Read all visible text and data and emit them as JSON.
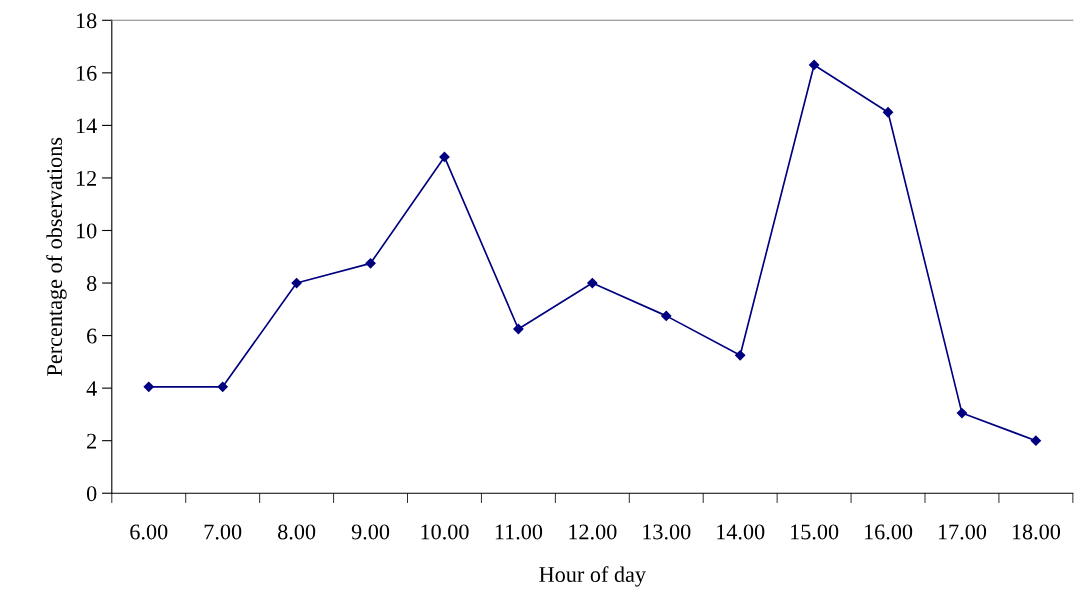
{
  "chart_data": {
    "type": "line",
    "xlabel": "Hour of day",
    "ylabel": "Percentage of observations",
    "categories": [
      "6.00",
      "7.00",
      "8.00",
      "9.00",
      "10.00",
      "11.00",
      "12.00",
      "13.00",
      "14.00",
      "15.00",
      "16.00",
      "17.00",
      "18.00"
    ],
    "series": [
      {
        "color": "#000080",
        "values": [
          4.05,
          4.05,
          8.0,
          8.75,
          12.8,
          6.25,
          8.0,
          6.75,
          5.25,
          16.3,
          14.5,
          3.05,
          2.0
        ]
      }
    ],
    "ylim": [
      0,
      18
    ],
    "yticks": [
      0,
      2,
      4,
      6,
      8,
      10,
      12,
      14,
      16,
      18
    ],
    "marker": "diamond",
    "line_style": "solid",
    "grid": false,
    "legend": false
  }
}
